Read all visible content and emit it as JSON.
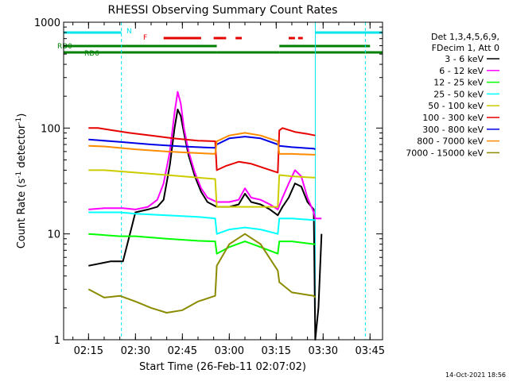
{
  "chart_data": {
    "type": "line",
    "title": "RHESSI Observing Summary Count Rates",
    "xlabel": "Start Time (26-Feb-11 02:07:02)",
    "ylabel": "Count Rate (s⁻¹ detector⁻¹)",
    "ylabel_parts": [
      "Count Rate (s",
      "-1",
      " detector",
      "-1",
      ")"
    ],
    "y_scale": "log",
    "ylim": [
      1,
      1000
    ],
    "xlim": [
      "02:07:02",
      "03:49:00"
    ],
    "x_ticks": [
      "02:15",
      "02:30",
      "02:45",
      "03:00",
      "03:15",
      "03:30",
      "03:45"
    ],
    "y_ticks": [
      "1",
      "10",
      "100",
      "1000"
    ],
    "grid": false,
    "footer_date": "14-Oct-2021 18:56",
    "legend_header": [
      "Det 1,3,4,5,6,9,",
      "FDecim 1, Att 0"
    ],
    "legend_position": "right",
    "flags": {
      "N": {
        "label": "N",
        "color": "#00e5ee",
        "segments": [
          [
            "02:07:02",
            "02:25:30"
          ],
          [
            "03:27:30",
            "03:49:00"
          ]
        ]
      },
      "F": {
        "label": "F",
        "color": "#e60000",
        "segments": [
          [
            "02:39:00",
            "02:51:00"
          ],
          [
            "02:55:00",
            "02:59:00"
          ],
          [
            "03:02:00",
            "03:04:00"
          ],
          [
            "03:19:00",
            "03:21:00"
          ],
          [
            "03:22:00",
            "03:23:30"
          ]
        ]
      },
      "RD0": {
        "label": "RD0",
        "color": "#008000",
        "segments": [
          [
            "02:07:02",
            "02:56:00"
          ],
          [
            "03:16:00",
            "03:45:00"
          ]
        ]
      },
      "RD6": {
        "label": "RD6",
        "color": "#008000",
        "segments": [
          [
            "02:07:02",
            "02:56:00"
          ],
          [
            "02:56:00",
            "03:16:00"
          ],
          [
            "03:16:00",
            "03:49:00"
          ]
        ]
      }
    },
    "night_markers": {
      "solid": [
        "03:27:30"
      ],
      "dashed": [
        "02:25:30",
        "03:43:30"
      ]
    },
    "series": [
      {
        "name": "3 - 6 keV",
        "color": "#000000",
        "x": [
          "02:07:02",
          "02:14:30",
          "02:15:00",
          "02:22:00",
          "02:26:00",
          "02:30:00",
          "02:34:00",
          "02:37:00",
          "02:39:00",
          "02:41:00",
          "02:42:30",
          "02:43:30",
          "02:44:30",
          "02:45:30",
          "02:47:00",
          "02:49:00",
          "02:51:00",
          "02:53:00",
          "02:56:00",
          "02:57:00",
          "03:00:00",
          "03:03:00",
          "03:05:00",
          "03:07:00",
          "03:10:00",
          "03:13:00",
          "03:15:30",
          "03:17:00",
          "03:19:00",
          "03:21:00",
          "03:23:00",
          "03:25:00",
          "03:27:00",
          "03:27:30",
          "03:28:30",
          "03:29:30",
          "03:31:30"
        ],
        "y": [
          null,
          null,
          5.0,
          5.5,
          5.5,
          16,
          17,
          18,
          21,
          45,
          100,
          150,
          130,
          90,
          55,
          35,
          25,
          20,
          18,
          18,
          18,
          19,
          24,
          20,
          19,
          17,
          15,
          18,
          22,
          30,
          28,
          20,
          17,
          1.0,
          2.0,
          10,
          null
        ]
      },
      {
        "name": "6 - 12 keV",
        "color": "#ff00ff",
        "x": [
          "02:07:02",
          "02:14:30",
          "02:15:00",
          "02:20:00",
          "02:26:00",
          "02:30:00",
          "02:34:00",
          "02:37:00",
          "02:39:00",
          "02:41:00",
          "02:42:30",
          "02:43:30",
          "02:44:30",
          "02:45:30",
          "02:47:00",
          "02:49:00",
          "02:51:00",
          "02:53:00",
          "02:56:00",
          "02:57:00",
          "03:00:00",
          "03:03:00",
          "03:05:00",
          "03:07:00",
          "03:10:00",
          "03:13:00",
          "03:15:30",
          "03:17:00",
          "03:19:00",
          "03:21:00",
          "03:23:00",
          "03:25:00",
          "03:27:00",
          "03:27:30",
          "03:28:30",
          "03:29:30",
          "03:31:30"
        ],
        "y": [
          null,
          null,
          17,
          17.5,
          17.5,
          17,
          18,
          21,
          30,
          60,
          140,
          220,
          170,
          100,
          60,
          38,
          27,
          22,
          20,
          20,
          20,
          21,
          27,
          22,
          21,
          19,
          17,
          22,
          30,
          40,
          35,
          22,
          16,
          14,
          14,
          14,
          null
        ]
      },
      {
        "name": "12 - 25 keV",
        "color": "#00ff00",
        "x": [
          "02:07:02",
          "02:14:30",
          "02:15:00",
          "02:25:00",
          "02:30:00",
          "02:40:00",
          "02:50:00",
          "02:55:30",
          "02:56:00",
          "03:00:00",
          "03:05:00",
          "03:10:00",
          "03:15:30",
          "03:16:00",
          "03:20:00",
          "03:27:00",
          "03:27:30",
          "03:31:30"
        ],
        "y": [
          null,
          null,
          10,
          9.5,
          9.5,
          9,
          8.6,
          8.5,
          6.5,
          7.5,
          8.5,
          7.5,
          6.5,
          8.5,
          8.5,
          8.0,
          8.0,
          null
        ]
      },
      {
        "name": "25 - 50 keV",
        "color": "#00ffff",
        "x": [
          "02:07:02",
          "02:14:30",
          "02:15:00",
          "02:25:00",
          "02:30:00",
          "02:40:00",
          "02:50:00",
          "02:55:30",
          "02:56:00",
          "03:00:00",
          "03:05:00",
          "03:10:00",
          "03:15:30",
          "03:16:00",
          "03:20:00",
          "03:27:00",
          "03:27:30",
          "03:31:30"
        ],
        "y": [
          null,
          null,
          16,
          16,
          15.5,
          15,
          14.5,
          14,
          10,
          11,
          11.5,
          11,
          10,
          14,
          14,
          13.5,
          13.5,
          null
        ]
      },
      {
        "name": "50 - 100 keV",
        "color": "#cccc00",
        "x": [
          "02:07:02",
          "02:14:30",
          "02:15:00",
          "02:20:00",
          "02:30:00",
          "02:40:00",
          "02:50:00",
          "02:55:30",
          "02:56:00",
          "03:00:00",
          "03:05:00",
          "03:10:00",
          "03:15:30",
          "03:16:00",
          "03:20:00",
          "03:27:00",
          "03:27:30",
          "03:31:30"
        ],
        "y": [
          null,
          null,
          40,
          40,
          38,
          36,
          34,
          33,
          18,
          18,
          18,
          18,
          18,
          36,
          35,
          34,
          34,
          null
        ]
      },
      {
        "name": "100 - 300 keV",
        "color": "#e60000",
        "x": [
          "02:07:02",
          "02:14:30",
          "02:15:00",
          "02:18:00",
          "02:22:00",
          "02:28:00",
          "02:35:00",
          "02:42:00",
          "02:50:00",
          "02:55:30",
          "02:56:00",
          "02:59:00",
          "03:03:00",
          "03:07:00",
          "03:11:00",
          "03:15:30",
          "03:16:00",
          "03:17:00",
          "03:21:00",
          "03:25:00",
          "03:27:30",
          "03:31:30"
        ],
        "y": [
          null,
          null,
          100,
          100,
          96,
          90,
          85,
          80,
          76,
          75,
          40,
          44,
          48,
          46,
          42,
          38,
          95,
          100,
          92,
          88,
          85,
          null
        ]
      },
      {
        "name": "300 - 800 keV",
        "color": "#0000e6",
        "x": [
          "02:07:02",
          "02:14:30",
          "02:15:00",
          "02:25:00",
          "02:35:00",
          "02:45:00",
          "02:55:30",
          "02:56:00",
          "03:00:00",
          "03:05:00",
          "03:10:00",
          "03:15:30",
          "03:16:00",
          "03:20:00",
          "03:27:00",
          "03:27:30",
          "03:31:30"
        ],
        "y": [
          null,
          null,
          78,
          74,
          70,
          67,
          65,
          70,
          80,
          83,
          80,
          70,
          68,
          66,
          64,
          63,
          null
        ]
      },
      {
        "name": "800 - 7000 keV",
        "color": "#ff8c00",
        "x": [
          "02:07:02",
          "02:14:30",
          "02:15:00",
          "02:20:00",
          "02:30:00",
          "02:40:00",
          "02:50:00",
          "02:55:30",
          "02:56:00",
          "03:00:00",
          "03:05:00",
          "03:10:00",
          "03:15:30",
          "03:16:00",
          "03:20:00",
          "03:27:00",
          "03:27:30",
          "03:31:30"
        ],
        "y": [
          null,
          null,
          68,
          67,
          63,
          60,
          58,
          57,
          75,
          85,
          90,
          85,
          75,
          57,
          57,
          56,
          56,
          null
        ]
      },
      {
        "name": "7000 - 15000 keV",
        "color": "#8b8b00",
        "x": [
          "02:07:02",
          "02:14:30",
          "02:15:00",
          "02:20:00",
          "02:25:00",
          "02:30:00",
          "02:35:00",
          "02:40:00",
          "02:45:00",
          "02:50:00",
          "02:55:30",
          "02:56:00",
          "03:00:00",
          "03:05:00",
          "03:10:00",
          "03:15:30",
          "03:16:00",
          "03:20:00",
          "03:27:00",
          "03:27:30",
          "03:31:30"
        ],
        "y": [
          null,
          null,
          3.0,
          2.5,
          2.6,
          2.3,
          2.0,
          1.8,
          1.9,
          2.3,
          2.6,
          5.0,
          8.0,
          10,
          8.0,
          4.5,
          3.5,
          2.8,
          2.6,
          2.5,
          null
        ]
      }
    ]
  }
}
